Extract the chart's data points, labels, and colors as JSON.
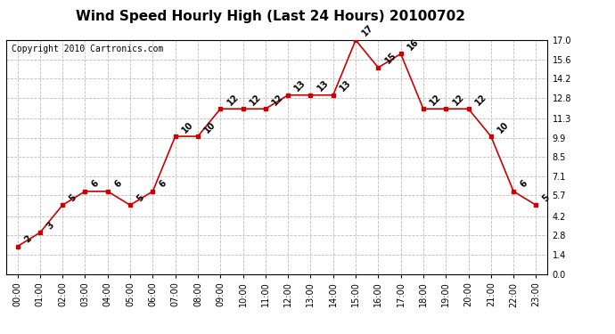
{
  "title": "Wind Speed Hourly High (Last 24 Hours) 20100702",
  "copyright": "Copyright 2010 Cartronics.com",
  "hours": [
    "00:00",
    "01:00",
    "02:00",
    "03:00",
    "04:00",
    "05:00",
    "06:00",
    "07:00",
    "08:00",
    "09:00",
    "10:00",
    "11:00",
    "12:00",
    "13:00",
    "14:00",
    "15:00",
    "16:00",
    "17:00",
    "18:00",
    "19:00",
    "20:00",
    "21:00",
    "22:00",
    "23:00"
  ],
  "values": [
    2,
    3,
    5,
    6,
    6,
    5,
    6,
    10,
    10,
    12,
    12,
    12,
    13,
    13,
    13,
    17,
    15,
    16,
    12,
    12,
    12,
    10,
    6,
    5
  ],
  "line_color": "#cc0000",
  "marker_color": "#cc0000",
  "background_color": "#ffffff",
  "grid_color": "#bbbbbb",
  "ylim": [
    0,
    17.0
  ],
  "yticks": [
    0.0,
    1.4,
    2.8,
    4.2,
    5.7,
    7.1,
    8.5,
    9.9,
    11.3,
    12.8,
    14.2,
    15.6,
    17.0
  ],
  "title_fontsize": 11,
  "annotation_fontsize": 7,
  "tick_fontsize": 7,
  "copyright_fontsize": 7
}
